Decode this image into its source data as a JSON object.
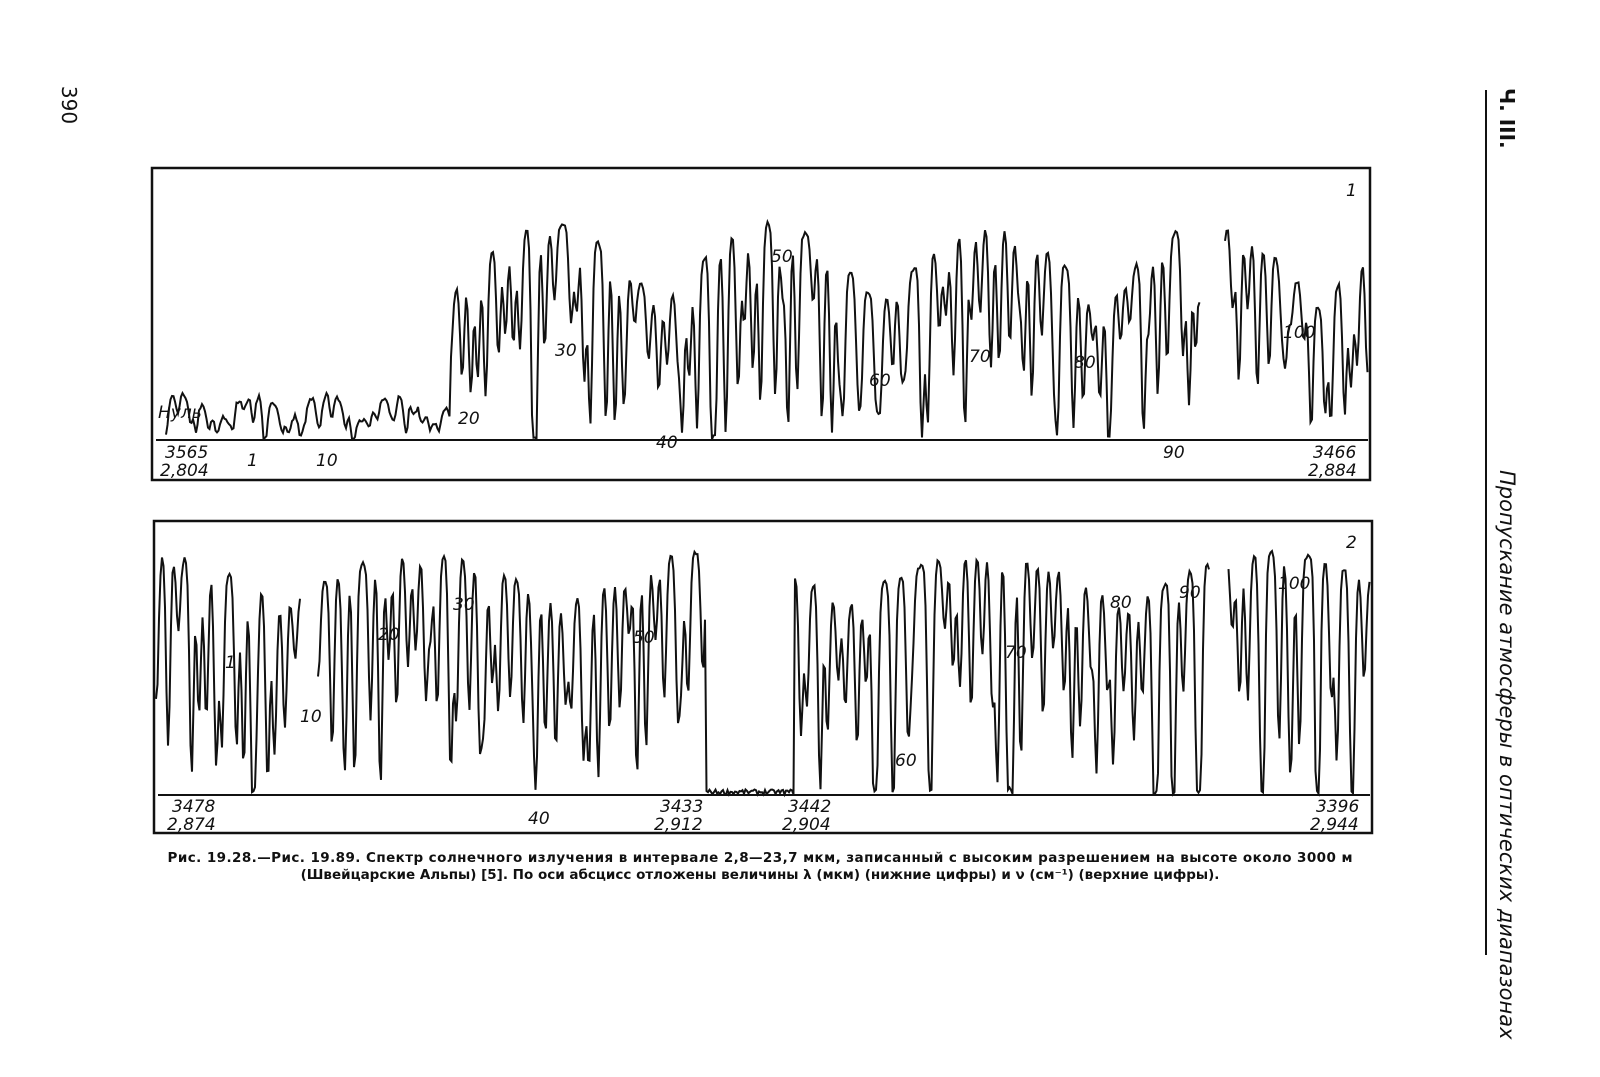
{
  "page_number": "390",
  "running_head": {
    "part": "Ч. III.",
    "title": "Пропускание атмосферы в оптических диапазонах"
  },
  "figure": {
    "panel1": {
      "label": "1",
      "zero_label": "Нуль",
      "left_top": "3565",
      "left_bottom": "2,804",
      "right_top": "3466",
      "right_bottom": "2,884",
      "marks": [
        "1",
        "10",
        "20",
        "30",
        "40",
        "50",
        "60",
        "70",
        "80",
        "90",
        "100"
      ]
    },
    "panel2": {
      "label": "2",
      "left_top": "3478",
      "left_bottom": "2,874",
      "mid1_top": "3433",
      "mid1_bottom": "2,912",
      "mid2_top": "3442",
      "mid2_bottom": "2,904",
      "right_top": "3396",
      "right_bottom": "2,944",
      "marks": [
        "1",
        "10",
        "20",
        "30",
        "40",
        "50",
        "60",
        "70",
        "80",
        "90",
        "100"
      ]
    },
    "caption": [
      "Рис. 19.28.—Рис. 19.89. Спектр солнечного излучения в интервале 2,8—23,7 мкм, записанный с высоким разрешением на высоте около 3000 м",
      "(Швейцарские Альпы) [5]. По оси абсцисс отложены величины λ (мкм) (нижние цифры) и ν (см⁻¹) (верхние цифры)."
    ]
  }
}
